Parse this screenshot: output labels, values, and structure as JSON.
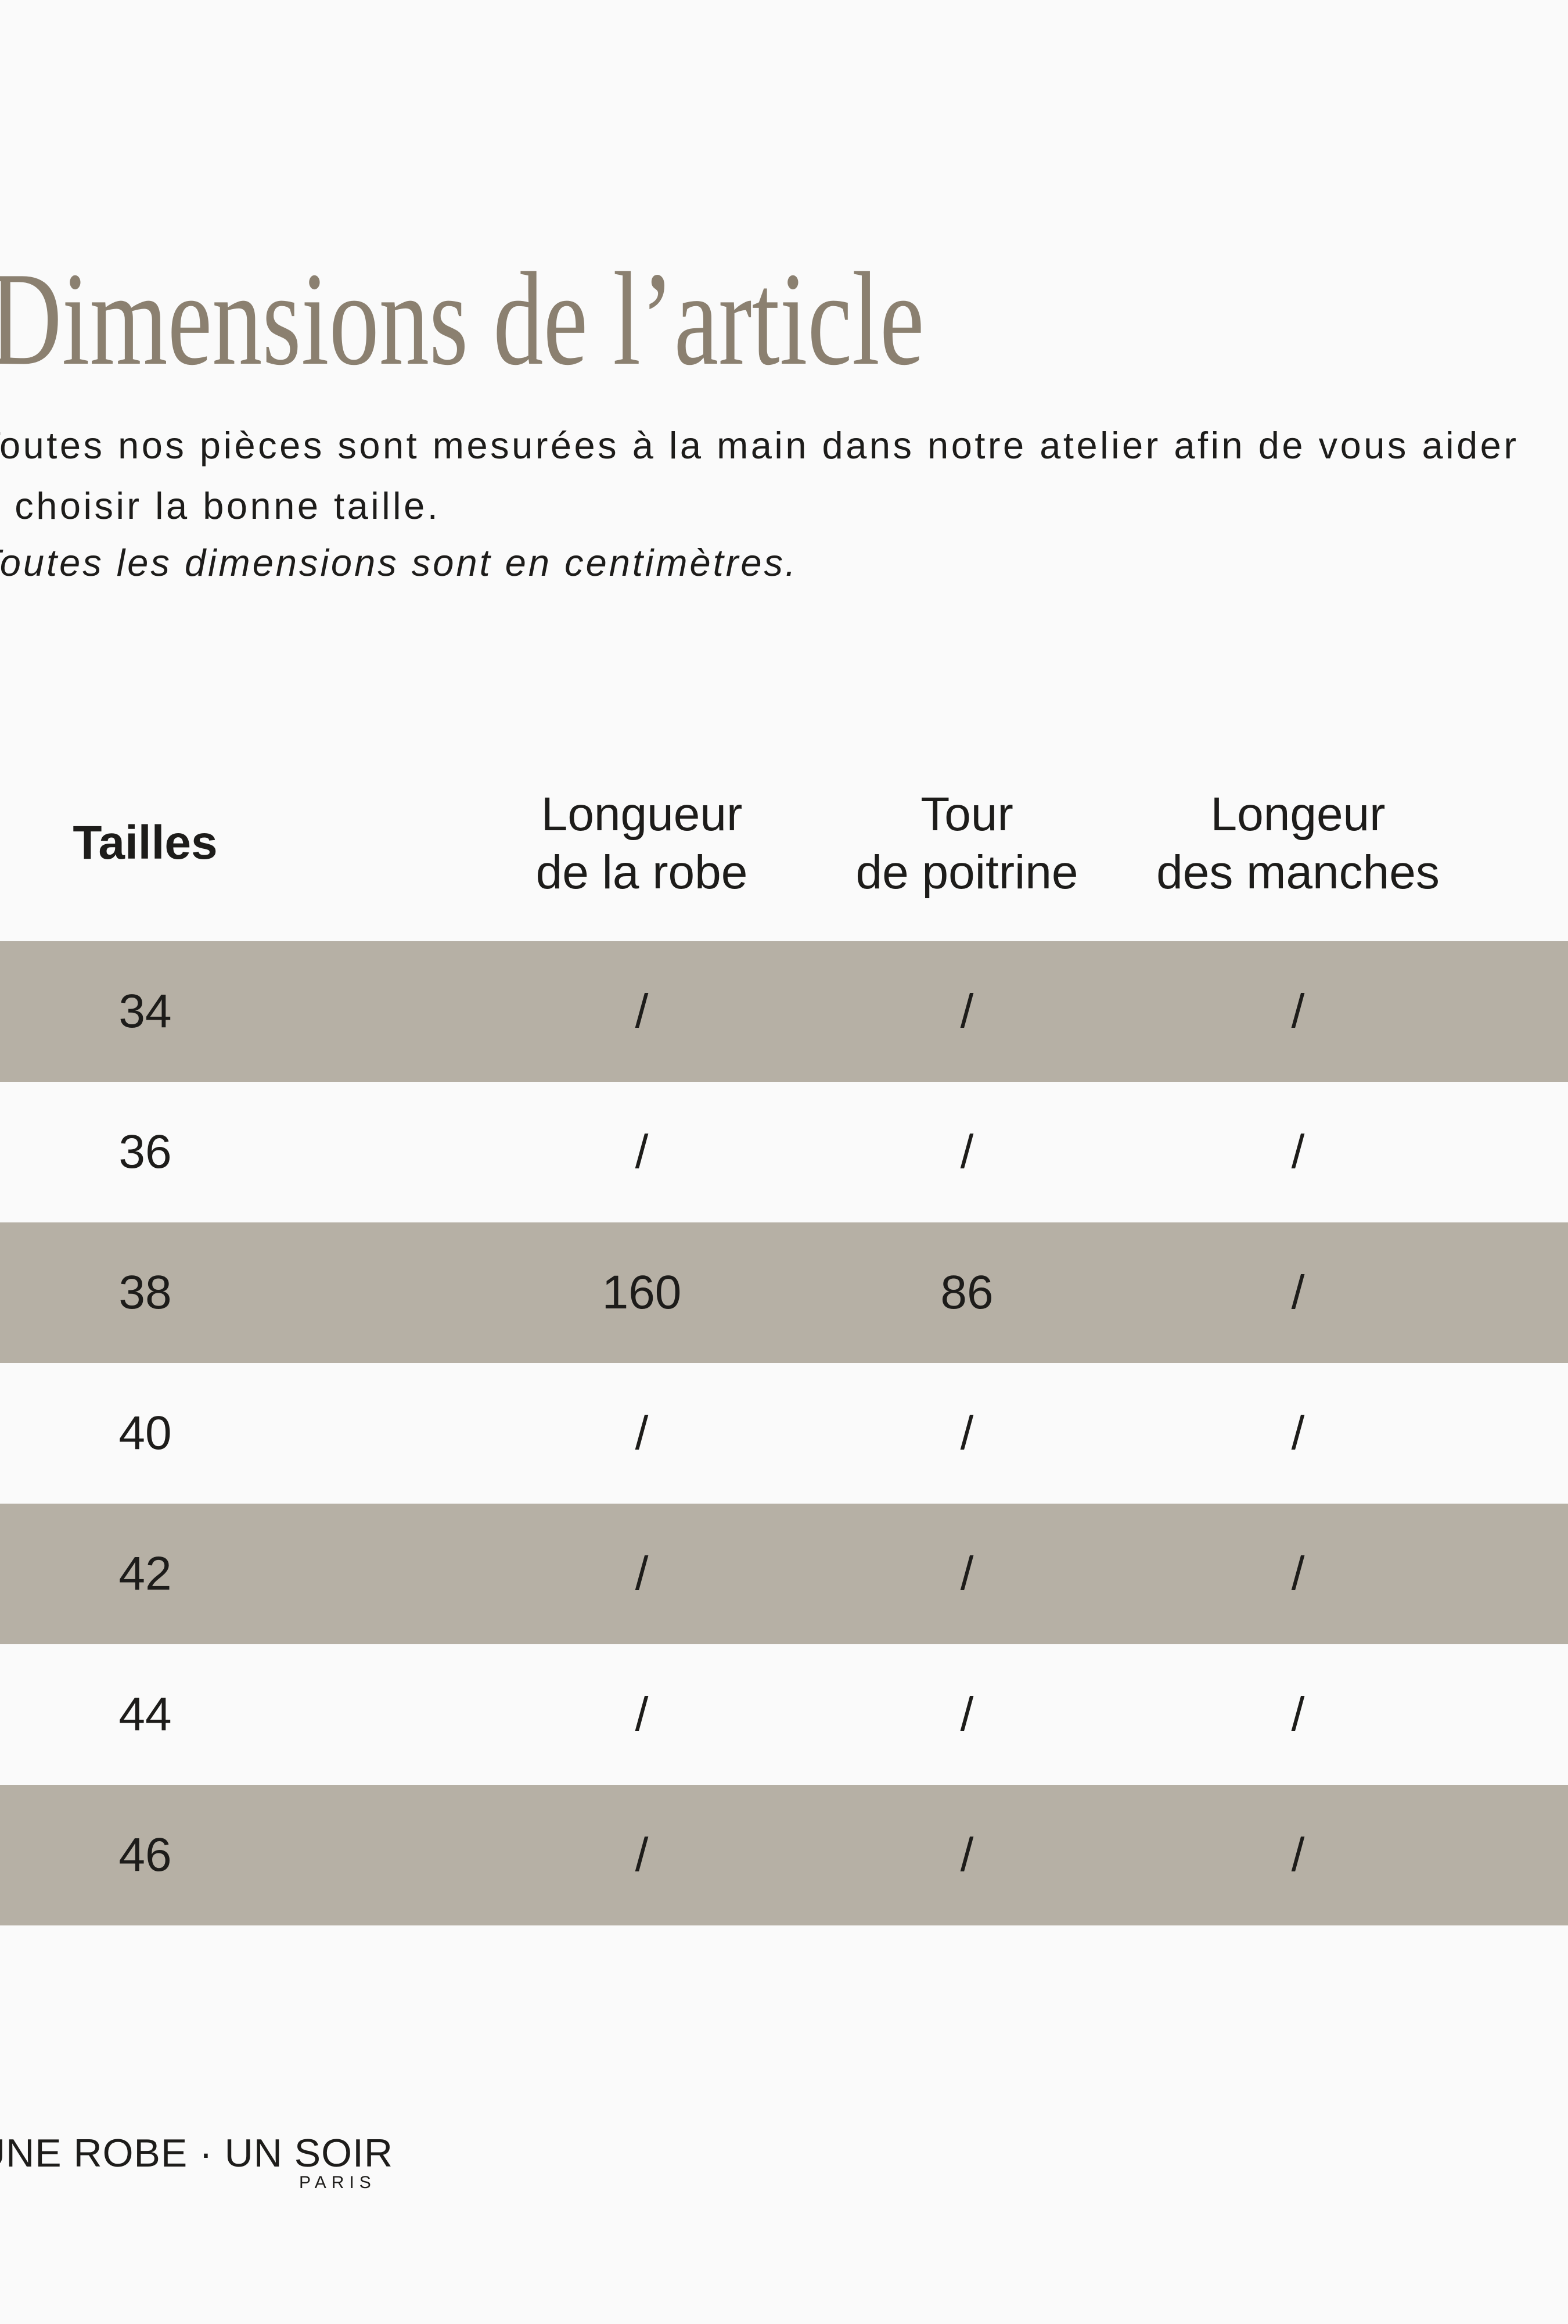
{
  "colors": {
    "bg": "#fafafa",
    "band": "#b6b0a5",
    "title": "#8b8070",
    "text": "#1d1c1a"
  },
  "page": {
    "title": "Dimensions de l’article",
    "intro_line1": "Toutes nos pièces sont mesurées à la main dans notre atelier afin de vous aider",
    "intro_line2": "à choisir la bonne taille.",
    "note": "Toutes les dimensions sont en centimètres."
  },
  "table": {
    "headers": [
      {
        "line1": "Tailles",
        "line2": ""
      },
      {
        "line1": "Longueur",
        "line2": "de la robe"
      },
      {
        "line1": "Tour",
        "line2": "de poitrine"
      },
      {
        "line1": "Longeur",
        "line2": "des manches"
      }
    ],
    "rows": [
      {
        "size": "34",
        "values": [
          "/",
          "/",
          "/"
        ],
        "shaded": true
      },
      {
        "size": "36",
        "values": [
          "/",
          "/",
          "/"
        ],
        "shaded": false
      },
      {
        "size": "38",
        "values": [
          "160",
          "86",
          "/"
        ],
        "shaded": true
      },
      {
        "size": "40",
        "values": [
          "/",
          "/",
          "/"
        ],
        "shaded": false
      },
      {
        "size": "42",
        "values": [
          "/",
          "/",
          "/"
        ],
        "shaded": true
      },
      {
        "size": "44",
        "values": [
          "/",
          "/",
          "/"
        ],
        "shaded": false
      },
      {
        "size": "46",
        "values": [
          "/",
          "/",
          "/"
        ],
        "shaded": true
      }
    ]
  },
  "footer": {
    "brand": "UNE ROBE · UN SOIR",
    "city": "PARIS"
  }
}
